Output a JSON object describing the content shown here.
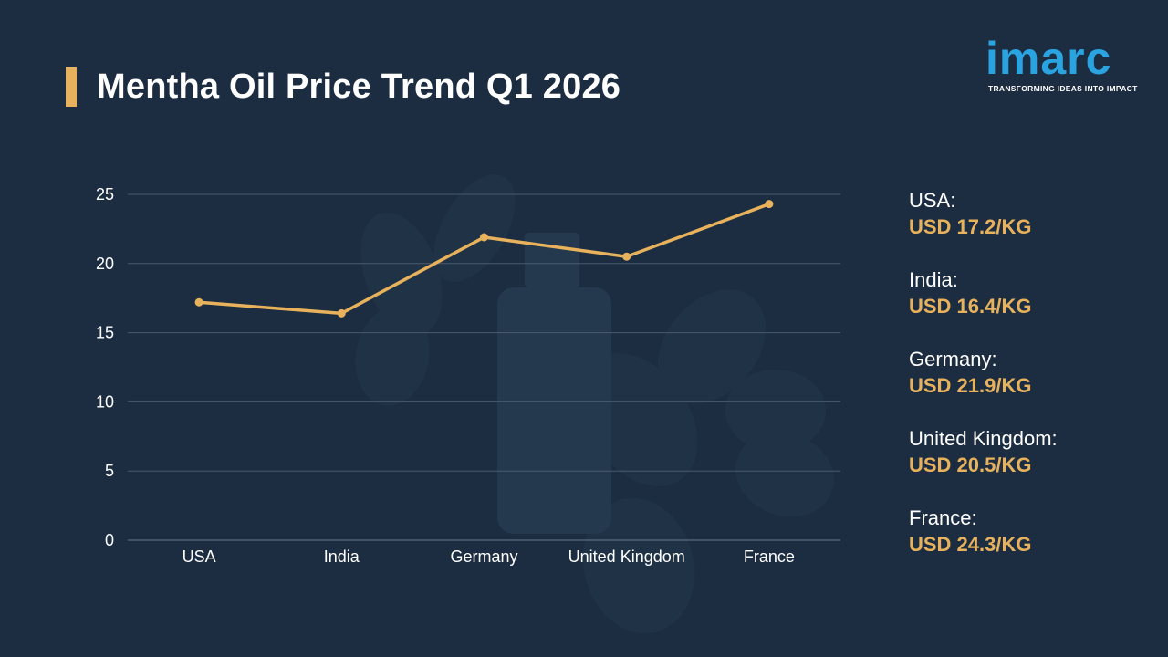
{
  "title": "Mentha Oil Price Trend Q1 2026",
  "logo": {
    "word": "imarc",
    "tagline": "TRANSFORMING IDEAS INTO IMPACT"
  },
  "colors": {
    "background": "#1c2c41",
    "accent": "#e7b25b",
    "logo": "#2aa4e0",
    "grid": "#4a5a6e"
  },
  "chart_data": {
    "type": "line",
    "categories": [
      "USA",
      "India",
      "Germany",
      "United Kingdom",
      "France"
    ],
    "values": [
      17.2,
      16.4,
      21.9,
      20.5,
      24.3
    ],
    "ylim": [
      0,
      25
    ],
    "yticks": [
      0,
      5,
      10,
      15,
      20,
      25
    ],
    "title": "",
    "xlabel": "",
    "ylabel": "",
    "grid": true,
    "legend": "none"
  },
  "panel": [
    {
      "label": "USA:",
      "value": "USD 17.2/KG"
    },
    {
      "label": "India:",
      "value": "USD 16.4/KG"
    },
    {
      "label": "Germany:",
      "value": "USD 21.9/KG"
    },
    {
      "label": "United Kingdom:",
      "value": "USD 20.5/KG"
    },
    {
      "label": "France:",
      "value": "USD 24.3/KG"
    }
  ]
}
